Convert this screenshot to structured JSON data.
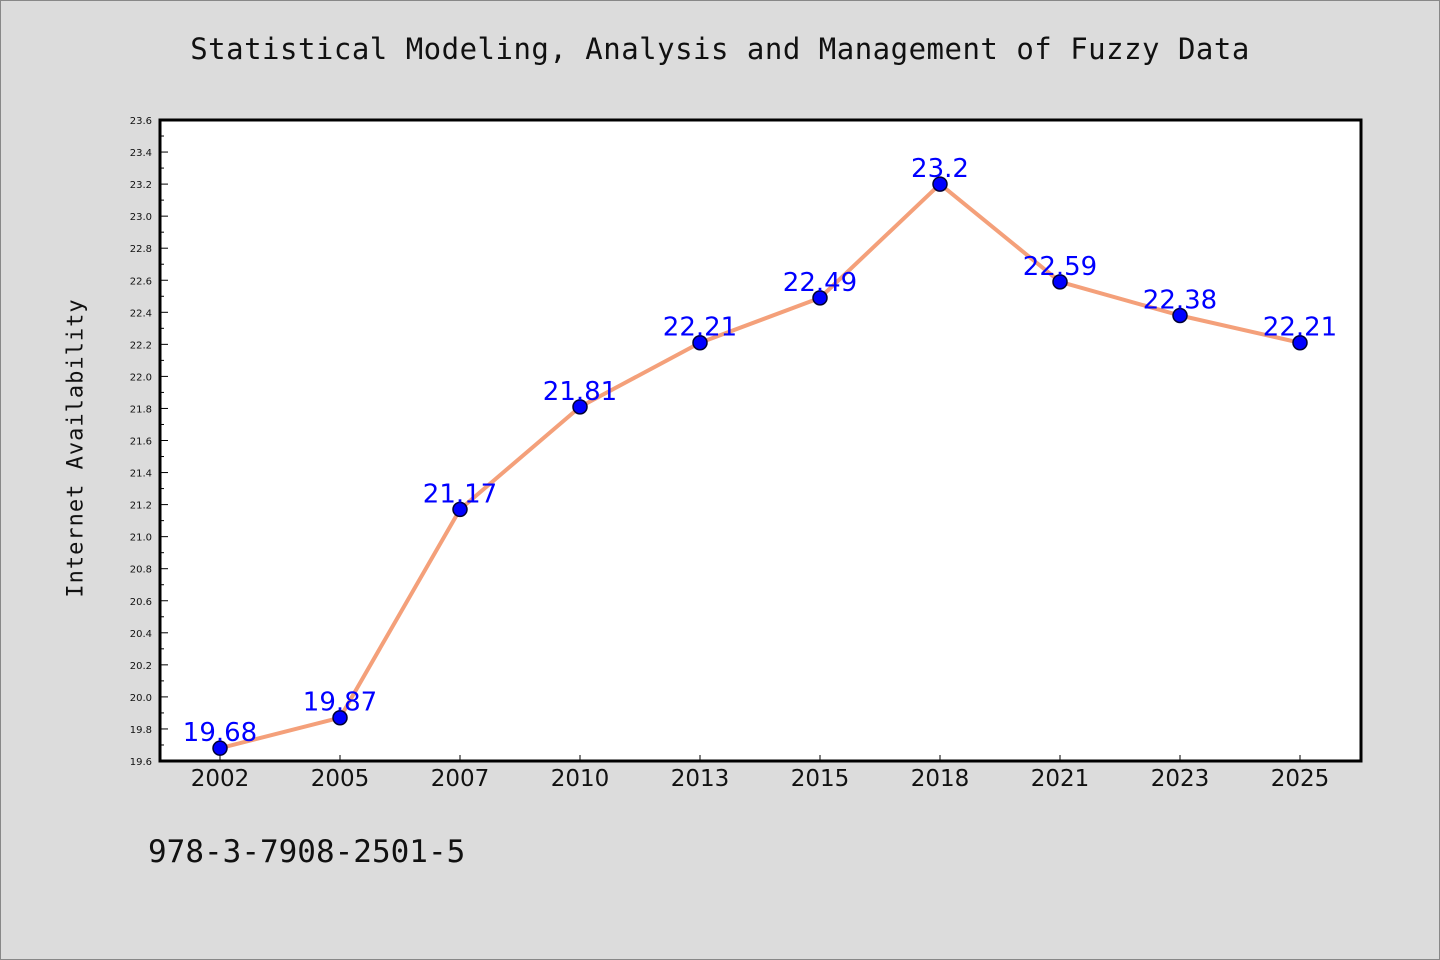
{
  "chart": {
    "title": "Statistical Modeling, Analysis and Management of Fuzzy Data",
    "ylabel": "Internet Availability",
    "footer": "978-3-7908-2501-5"
  },
  "colors": {
    "background": "#dcdcdc",
    "plot_area": "#ffffff",
    "line": "#f4a07a",
    "marker": "#0000ff",
    "data_label": "#0000ff",
    "axis": "#000000"
  },
  "chart_data": {
    "type": "line",
    "title": "Statistical Modeling, Analysis and Management of Fuzzy Data",
    "xlabel": "",
    "ylabel": "Internet Availability",
    "categories": [
      "2002",
      "2005",
      "2007",
      "2010",
      "2013",
      "2015",
      "2018",
      "2021",
      "2023",
      "2025"
    ],
    "series": [
      {
        "values": [
          19.68,
          19.87,
          21.17,
          21.81,
          22.21,
          22.49,
          23.2,
          22.59,
          22.38,
          22.21
        ],
        "labels": [
          "19.68",
          "19.87",
          "21.17",
          "21.81",
          "22.21",
          "22.49",
          "23.2",
          "22.59",
          "22.38",
          "22.21"
        ]
      }
    ],
    "ylim": [
      19.6,
      23.6
    ],
    "yticks": [
      "19.6",
      "19.8",
      "20.0",
      "20.2",
      "20.4",
      "20.6",
      "20.8",
      "21.0",
      "21.2",
      "21.4",
      "21.6",
      "21.8",
      "22.0",
      "22.2",
      "22.4",
      "22.6",
      "22.8",
      "23.0",
      "23.2",
      "23.4",
      "23.6"
    ],
    "grid": false,
    "legend": "none"
  }
}
